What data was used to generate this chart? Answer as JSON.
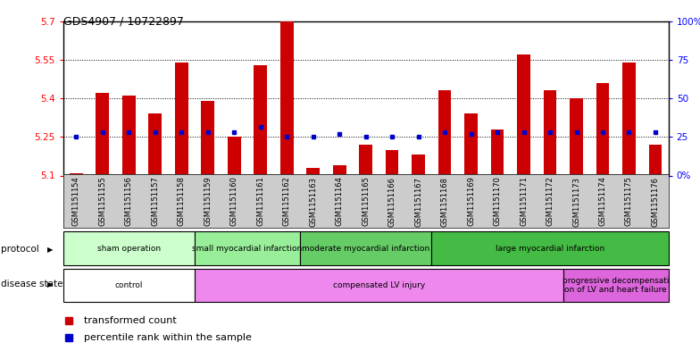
{
  "title": "GDS4907 / 10722897",
  "samples": [
    "GSM1151154",
    "GSM1151155",
    "GSM1151156",
    "GSM1151157",
    "GSM1151158",
    "GSM1151159",
    "GSM1151160",
    "GSM1151161",
    "GSM1151162",
    "GSM1151163",
    "GSM1151164",
    "GSM1151165",
    "GSM1151166",
    "GSM1151167",
    "GSM1151168",
    "GSM1151169",
    "GSM1151170",
    "GSM1151171",
    "GSM1151172",
    "GSM1151173",
    "GSM1151174",
    "GSM1151175",
    "GSM1151176"
  ],
  "bar_values": [
    5.11,
    5.42,
    5.41,
    5.34,
    5.54,
    5.39,
    5.25,
    5.53,
    5.7,
    5.13,
    5.14,
    5.22,
    5.2,
    5.18,
    5.43,
    5.34,
    5.28,
    5.57,
    5.43,
    5.4,
    5.46,
    5.54,
    5.22
  ],
  "blue_dot_values": [
    5.25,
    5.27,
    5.27,
    5.27,
    5.27,
    5.27,
    5.27,
    5.29,
    5.25,
    5.25,
    5.26,
    5.25,
    5.25,
    5.25,
    5.27,
    5.26,
    5.27,
    5.27,
    5.27,
    5.27,
    5.27,
    5.27,
    5.27
  ],
  "ylim": [
    5.1,
    5.7
  ],
  "yticks_left": [
    5.1,
    5.25,
    5.4,
    5.55,
    5.7
  ],
  "yticks_right": [
    0,
    25,
    50,
    75,
    100
  ],
  "bar_color": "#cc0000",
  "dot_color": "#0000cc",
  "plot_bg": "#ffffff",
  "xticklabel_bg": "#cccccc",
  "protocol_groups": [
    {
      "label": "sham operation",
      "start": 0,
      "end": 4,
      "color": "#ccffcc"
    },
    {
      "label": "small myocardial infarction",
      "start": 5,
      "end": 8,
      "color": "#99ee99"
    },
    {
      "label": "moderate myocardial infarction",
      "start": 9,
      "end": 13,
      "color": "#66cc66"
    },
    {
      "label": "large myocardial infarction",
      "start": 14,
      "end": 22,
      "color": "#44bb44"
    }
  ],
  "disease_groups": [
    {
      "label": "control",
      "start": 0,
      "end": 4,
      "color": "#ffffff"
    },
    {
      "label": "compensated LV injury",
      "start": 5,
      "end": 18,
      "color": "#ee88ee"
    },
    {
      "label": "progressive decompensati\non of LV and heart failure",
      "start": 19,
      "end": 22,
      "color": "#dd66dd"
    }
  ]
}
